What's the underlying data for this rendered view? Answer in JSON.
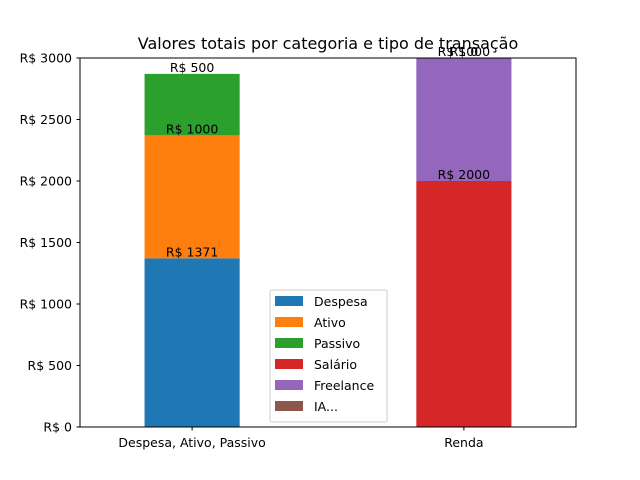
{
  "chart_data": {
    "type": "bar",
    "stacked": true,
    "title": "Valores totais por categoria e tipo de transação",
    "xlabel": "",
    "ylabel": "",
    "ylim": [
      0,
      3000
    ],
    "yticks": [
      0,
      500,
      1000,
      1500,
      2000,
      2500,
      3000
    ],
    "ytick_prefix": "R$ ",
    "categories": [
      "Despesa, Ativo, Passivo",
      "Renda"
    ],
    "grid": false,
    "legend_position": "lower-center",
    "series": [
      {
        "name": "Despesa",
        "color": "#1f77b4",
        "values": [
          1371,
          0
        ],
        "labels": [
          "R$ 1371",
          null
        ]
      },
      {
        "name": "Ativo",
        "color": "#ff7f0e",
        "values": [
          1000,
          0
        ],
        "labels": [
          "R$ 1000",
          null
        ]
      },
      {
        "name": "Passivo",
        "color": "#2ca02c",
        "values": [
          500,
          0
        ],
        "labels": [
          "R$ 500",
          null
        ]
      },
      {
        "name": "Salário",
        "color": "#d62728",
        "values": [
          0,
          2000
        ],
        "labels": [
          null,
          "R$ 2000"
        ]
      },
      {
        "name": "Freelance",
        "color": "#9467bd",
        "values": [
          0,
          1000
        ],
        "labels": [
          null,
          "R$ 1000"
        ]
      },
      {
        "name": "IA...",
        "color": "#8c564b",
        "values": [
          0,
          0
        ],
        "labels": [
          null,
          "R$ 0"
        ]
      }
    ]
  }
}
